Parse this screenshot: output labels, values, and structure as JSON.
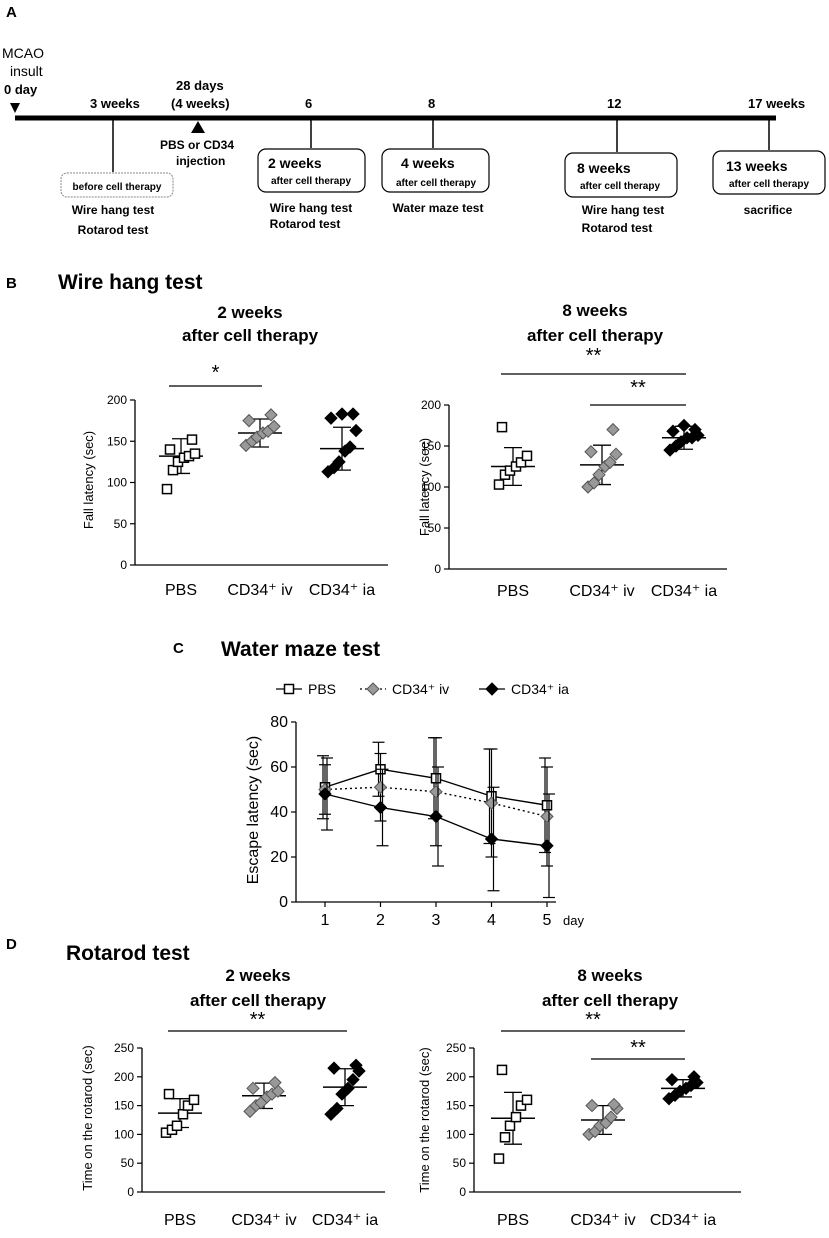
{
  "panel_labels": {
    "a": "A",
    "b": "B",
    "c": "C",
    "d": "D"
  },
  "timeline": {
    "start_line1": "MCAO",
    "start_line2": "insult",
    "start_line3": "0 day",
    "injection_line1": "28 days",
    "injection_line2": "(4 weeks)",
    "injection_note1": "PBS or CD34",
    "injection_note2": "injection",
    "ticks": [
      "3 weeks",
      "6",
      "8",
      "12",
      "17 weeks"
    ],
    "boxes": [
      {
        "main": "before cell therapy",
        "sub": ""
      },
      {
        "main": "2 weeks",
        "sub": "after cell therapy"
      },
      {
        "main": "4 weeks",
        "sub": "after cell therapy"
      },
      {
        "main": "8 weeks",
        "sub": "after cell therapy"
      },
      {
        "main": "13 weeks",
        "sub": "after cell therapy"
      }
    ],
    "notes": [
      [
        "Wire hang test",
        "Rotarod test"
      ],
      [
        "Wire hang test",
        "Rotarod test"
      ],
      [
        "Water maze test"
      ],
      [
        "Wire hang test",
        "Rotarod test"
      ],
      [
        "sacrifice"
      ]
    ]
  },
  "sections": {
    "wire_hang": "Wire hang test",
    "water_maze": "Water maze test",
    "rotarod": "Rotarod test"
  },
  "chart_data": [
    {
      "type": "scatter",
      "id": "wire2",
      "title": "2 weeks",
      "subtitle": "after cell therapy",
      "ylabel": "Fall latency (sec)",
      "ylim": [
        0,
        200
      ],
      "yticks": [
        0,
        50,
        100,
        150,
        200
      ],
      "categories": [
        "PBS",
        "CD34⁺ iv",
        "CD34⁺ ia"
      ],
      "groups": [
        {
          "name": "PBS",
          "marker": "open-square",
          "mean": 132,
          "sd": 21,
          "points": [
            92,
            115,
            125,
            130,
            132,
            135,
            140,
            152
          ]
        },
        {
          "name": "CD34⁺ iv",
          "marker": "grey-diamond",
          "mean": 160,
          "sd": 17,
          "points": [
            145,
            150,
            155,
            160,
            162,
            168,
            175,
            182
          ]
        },
        {
          "name": "CD34⁺ ia",
          "marker": "black-diamond",
          "mean": 141,
          "sd": 26,
          "points": [
            113,
            118,
            125,
            138,
            143,
            163,
            178,
            183,
            183
          ]
        }
      ],
      "significance": [
        {
          "from": 0,
          "to": 1,
          "label": "*"
        }
      ]
    },
    {
      "type": "scatter",
      "id": "wire8",
      "title": "8 weeks",
      "subtitle": "after cell therapy",
      "ylabel": "Fall latency (sec)",
      "ylim": [
        0,
        200
      ],
      "yticks": [
        0,
        50,
        100,
        150,
        200
      ],
      "categories": [
        "PBS",
        "CD34⁺ iv",
        "CD34⁺ ia"
      ],
      "groups": [
        {
          "name": "PBS",
          "marker": "open-square",
          "mean": 125,
          "sd": 23,
          "points": [
            103,
            115,
            120,
            125,
            130,
            138,
            173
          ]
        },
        {
          "name": "CD34⁺ iv",
          "marker": "grey-diamond",
          "mean": 127,
          "sd": 24,
          "points": [
            100,
            105,
            115,
            125,
            130,
            140,
            143,
            170
          ]
        },
        {
          "name": "CD34⁺ ia",
          "marker": "black-diamond",
          "mean": 160,
          "sd": 14,
          "points": [
            145,
            150,
            155,
            160,
            160,
            163,
            168,
            170,
            175
          ]
        }
      ],
      "significance": [
        {
          "from": 0,
          "to": 2,
          "label": "**"
        },
        {
          "from": 1,
          "to": 2,
          "label": "**"
        }
      ]
    },
    {
      "type": "line",
      "id": "water",
      "ylabel": "Escape latency (sec)",
      "xlabel": "day",
      "x": [
        1,
        2,
        3,
        4,
        5
      ],
      "ylim": [
        0,
        80
      ],
      "yticks": [
        0,
        20,
        40,
        60,
        80
      ],
      "series": [
        {
          "name": "PBS",
          "marker": "open-square",
          "dash": "solid",
          "values": [
            51,
            59,
            55,
            47,
            43
          ],
          "sd": [
            14,
            12,
            18,
            21,
            21
          ]
        },
        {
          "name": "CD34⁺ iv",
          "marker": "grey-diamond",
          "dash": "dotted",
          "values": [
            50,
            51,
            49,
            44,
            38
          ],
          "sd": [
            11,
            15,
            24,
            24,
            22
          ]
        },
        {
          "name": "CD34⁺ ia",
          "marker": "black-diamond",
          "dash": "solid",
          "values": [
            48,
            42,
            38,
            28,
            25
          ],
          "sd": [
            16,
            17,
            22,
            23,
            23
          ]
        }
      ]
    },
    {
      "type": "scatter",
      "id": "rota2",
      "title": "2 weeks",
      "subtitle": "after cell therapy",
      "ylabel": "Time on the rotarod (sec)",
      "ylim": [
        0,
        250
      ],
      "yticks": [
        0,
        50,
        100,
        150,
        200,
        250
      ],
      "categories": [
        "PBS",
        "CD34⁺ iv",
        "CD34⁺ ia"
      ],
      "groups": [
        {
          "name": "PBS",
          "marker": "open-square",
          "mean": 137,
          "sd": 25,
          "points": [
            103,
            108,
            115,
            135,
            150,
            160,
            170
          ]
        },
        {
          "name": "CD34⁺ iv",
          "marker": "grey-diamond",
          "mean": 167,
          "sd": 22,
          "points": [
            140,
            150,
            155,
            165,
            170,
            175,
            180,
            190
          ]
        },
        {
          "name": "CD34⁺ ia",
          "marker": "black-diamond",
          "mean": 182,
          "sd": 32,
          "points": [
            135,
            145,
            170,
            180,
            195,
            210,
            215,
            220
          ]
        }
      ],
      "significance": [
        {
          "from": 0,
          "to": 2,
          "label": "**"
        }
      ]
    },
    {
      "type": "scatter",
      "id": "rota8",
      "title": "8 weeks",
      "subtitle": "after cell therapy",
      "ylabel": "Time on the rotarod (sec)",
      "ylim": [
        0,
        250
      ],
      "yticks": [
        0,
        50,
        100,
        150,
        200,
        250
      ],
      "categories": [
        "PBS",
        "CD34⁺ iv",
        "CD34⁺ ia"
      ],
      "groups": [
        {
          "name": "PBS",
          "marker": "open-square",
          "mean": 128,
          "sd": 45,
          "points": [
            58,
            95,
            115,
            130,
            150,
            160,
            212
          ]
        },
        {
          "name": "CD34⁺ iv",
          "marker": "grey-diamond",
          "mean": 125,
          "sd": 25,
          "points": [
            100,
            105,
            115,
            120,
            130,
            145,
            150,
            152
          ]
        },
        {
          "name": "CD34⁺ ia",
          "marker": "black-diamond",
          "mean": 180,
          "sd": 15,
          "points": [
            162,
            168,
            175,
            180,
            185,
            190,
            195,
            200
          ]
        }
      ],
      "significance": [
        {
          "from": 0,
          "to": 2,
          "label": "**"
        },
        {
          "from": 1,
          "to": 2,
          "label": "**"
        }
      ]
    }
  ]
}
